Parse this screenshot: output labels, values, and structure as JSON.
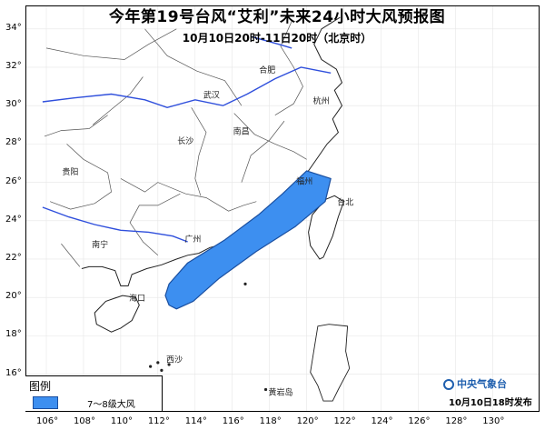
{
  "title": "今年第19号台风“艾利”未来24小时大风预报图",
  "subtitle": "10月10日20时-11日20时（北京时）",
  "lat_labels": [
    "34°",
    "32°",
    "30°",
    "28°",
    "26°",
    "24°",
    "22°",
    "20°",
    "18°",
    "16°"
  ],
  "lon_labels": [
    "106°",
    "108°",
    "110°",
    "112°",
    "114°",
    "116°",
    "118°",
    "120°",
    "122°",
    "124°",
    "126°",
    "128°",
    "130°"
  ],
  "places": [
    {
      "name": "合肥",
      "lon": 117.3,
      "lat": 31.9
    },
    {
      "name": "武汉",
      "lon": 114.3,
      "lat": 30.6
    },
    {
      "name": "杭州",
      "lon": 120.2,
      "lat": 30.3
    },
    {
      "name": "长沙",
      "lon": 112.9,
      "lat": 28.2
    },
    {
      "name": "南昌",
      "lon": 115.9,
      "lat": 28.7
    },
    {
      "name": "贵阳",
      "lon": 106.7,
      "lat": 26.6
    },
    {
      "name": "福州",
      "lon": 119.3,
      "lat": 26.1
    },
    {
      "name": "台北",
      "lon": 121.5,
      "lat": 25.0
    },
    {
      "name": "南宁",
      "lon": 108.3,
      "lat": 22.8
    },
    {
      "name": "广州",
      "lon": 113.3,
      "lat": 23.1
    },
    {
      "name": "海口",
      "lon": 110.3,
      "lat": 20.0
    },
    {
      "name": "西沙",
      "lon": 112.3,
      "lat": 16.8
    },
    {
      "name": "黄岩岛",
      "lon": 117.8,
      "lat": 15.1
    }
  ],
  "legend": {
    "title": "图例",
    "label": "7～8级大风"
  },
  "agency": {
    "name": "中央气象台",
    "icon": "cma-logo-icon"
  },
  "release_time": "10月10日18时发布",
  "colors": {
    "wind_area": "#3d8ff0",
    "wind_area_border": "#1a4fa0",
    "river": "#2f4fdc",
    "agency": "#1f5fae"
  },
  "wind_area_lonlat": [
    [
      120.0,
      26.6
    ],
    [
      121.3,
      26.2
    ],
    [
      121.0,
      25.0
    ],
    [
      119.4,
      23.7
    ],
    [
      117.3,
      22.4
    ],
    [
      115.3,
      21.0
    ],
    [
      113.9,
      19.8
    ],
    [
      113.0,
      19.4
    ],
    [
      112.6,
      19.6
    ],
    [
      112.4,
      20.1
    ],
    [
      112.6,
      20.7
    ],
    [
      113.6,
      21.8
    ],
    [
      115.6,
      23.0
    ],
    [
      117.4,
      24.3
    ],
    [
      118.7,
      25.4
    ]
  ],
  "rivers_lonlat": [
    [
      [
        105.8,
        30.2
      ],
      [
        107.5,
        30.4
      ],
      [
        109.5,
        30.6
      ],
      [
        111.3,
        30.3
      ],
      [
        112.5,
        29.9
      ],
      [
        114.0,
        30.3
      ],
      [
        115.5,
        30.0
      ],
      [
        116.8,
        30.6
      ],
      [
        118.3,
        31.4
      ],
      [
        119.7,
        32.0
      ],
      [
        121.3,
        31.7
      ]
    ],
    [
      [
        105.8,
        24.7
      ],
      [
        107.2,
        24.2
      ],
      [
        108.6,
        23.8
      ],
      [
        110.0,
        23.5
      ],
      [
        111.5,
        23.4
      ],
      [
        112.8,
        23.2
      ],
      [
        113.6,
        22.9
      ]
    ],
    [
      [
        117.0,
        33.6
      ],
      [
        118.5,
        33.2
      ],
      [
        119.2,
        33.0
      ]
    ]
  ],
  "coast_mainland_lonlat": [
    [
      121.8,
      34.6
    ],
    [
      120.8,
      34.0
    ],
    [
      120.4,
      33.2
    ],
    [
      120.8,
      32.4
    ],
    [
      121.6,
      31.9
    ],
    [
      121.9,
      31.2
    ],
    [
      121.5,
      30.8
    ],
    [
      121.9,
      30.0
    ],
    [
      121.4,
      29.3
    ],
    [
      121.7,
      28.6
    ],
    [
      121.1,
      28.0
    ],
    [
      120.6,
      27.3
    ],
    [
      120.1,
      26.6
    ],
    [
      119.6,
      25.7
    ],
    [
      119.0,
      25.0
    ],
    [
      118.5,
      24.5
    ],
    [
      117.8,
      24.0
    ],
    [
      117.0,
      23.5
    ],
    [
      116.5,
      23.1
    ],
    [
      115.6,
      22.8
    ],
    [
      114.8,
      22.6
    ],
    [
      114.2,
      22.3
    ],
    [
      113.6,
      22.2
    ],
    [
      113.0,
      22.0
    ],
    [
      112.2,
      21.7
    ],
    [
      111.4,
      21.5
    ],
    [
      110.6,
      21.2
    ],
    [
      110.4,
      20.6
    ],
    [
      110.0,
      20.6
    ],
    [
      109.7,
      21.4
    ],
    [
      109.0,
      21.6
    ],
    [
      108.3,
      21.6
    ],
    [
      107.9,
      21.5
    ]
  ],
  "taiwan_lonlat": [
    [
      121.5,
      25.3
    ],
    [
      122.0,
      25.0
    ],
    [
      121.7,
      24.2
    ],
    [
      121.4,
      23.2
    ],
    [
      120.9,
      22.1
    ],
    [
      120.7,
      22.0
    ],
    [
      120.2,
      22.7
    ],
    [
      120.1,
      23.4
    ],
    [
      120.3,
      24.3
    ],
    [
      121.0,
      25.1
    ]
  ],
  "hainan_lonlat": [
    [
      110.1,
      20.1
    ],
    [
      110.8,
      20.0
    ],
    [
      111.0,
      19.6
    ],
    [
      110.6,
      18.8
    ],
    [
      110.0,
      18.4
    ],
    [
      109.5,
      18.2
    ],
    [
      108.7,
      18.6
    ],
    [
      108.6,
      19.2
    ],
    [
      109.2,
      19.8
    ]
  ],
  "luzon_lonlat": [
    [
      120.6,
      18.5
    ],
    [
      121.2,
      18.6
    ],
    [
      122.2,
      18.5
    ],
    [
      122.1,
      17.2
    ],
    [
      122.3,
      16.3
    ],
    [
      121.7,
      15.2
    ],
    [
      121.4,
      14.6
    ],
    [
      120.9,
      14.6
    ],
    [
      120.6,
      15.4
    ],
    [
      120.2,
      16.1
    ],
    [
      120.4,
      17.3
    ]
  ],
  "borders_lonlat": [
    [
      [
        106.0,
        33.0
      ],
      [
        108.0,
        32.6
      ],
      [
        110.2,
        32.4
      ],
      [
        111.5,
        33.2
      ],
      [
        113.0,
        34.0
      ]
    ],
    [
      [
        108.5,
        29.0
      ],
      [
        109.5,
        29.8
      ],
      [
        110.5,
        30.6
      ],
      [
        111.2,
        31.5
      ]
    ],
    [
      [
        110.0,
        26.2
      ],
      [
        111.3,
        25.5
      ],
      [
        112.0,
        26.0
      ],
      [
        113.5,
        25.4
      ],
      [
        114.6,
        25.2
      ],
      [
        115.8,
        24.5
      ],
      [
        116.6,
        24.8
      ],
      [
        117.3,
        25.0
      ]
    ],
    [
      [
        113.8,
        29.9
      ],
      [
        114.6,
        28.6
      ],
      [
        114.2,
        27.4
      ],
      [
        114.0,
        26.2
      ],
      [
        114.3,
        25.3
      ]
    ],
    [
      [
        116.1,
        29.6
      ],
      [
        117.2,
        28.5
      ],
      [
        118.3,
        28.0
      ],
      [
        119.3,
        27.6
      ],
      [
        120.0,
        27.2
      ]
    ],
    [
      [
        116.5,
        26.0
      ],
      [
        117.0,
        27.4
      ],
      [
        118.0,
        28.2
      ],
      [
        118.8,
        29.2
      ]
    ],
    [
      [
        107.1,
        28.0
      ],
      [
        108.0,
        27.2
      ],
      [
        109.3,
        26.5
      ],
      [
        109.5,
        25.5
      ],
      [
        108.6,
        24.9
      ],
      [
        107.3,
        24.6
      ],
      [
        106.2,
        25.0
      ]
    ],
    [
      [
        105.9,
        28.4
      ],
      [
        106.8,
        28.7
      ],
      [
        108.3,
        28.8
      ],
      [
        109.3,
        29.5
      ]
    ],
    [
      [
        111.3,
        34.0
      ],
      [
        112.5,
        32.6
      ],
      [
        114.1,
        31.8
      ],
      [
        115.6,
        31.3
      ],
      [
        116.5,
        30.0
      ]
    ],
    [
      [
        119.2,
        34.4
      ],
      [
        118.6,
        33.1
      ],
      [
        119.3,
        32.0
      ],
      [
        119.8,
        31.0
      ],
      [
        119.3,
        30.1
      ],
      [
        118.3,
        29.5
      ]
    ],
    [
      [
        112.0,
        22.2
      ],
      [
        111.2,
        22.9
      ],
      [
        110.5,
        23.9
      ],
      [
        111.0,
        24.8
      ],
      [
        112.0,
        24.8
      ],
      [
        113.2,
        25.4
      ]
    ],
    [
      [
        106.8,
        22.8
      ],
      [
        107.8,
        21.6
      ]
    ]
  ]
}
